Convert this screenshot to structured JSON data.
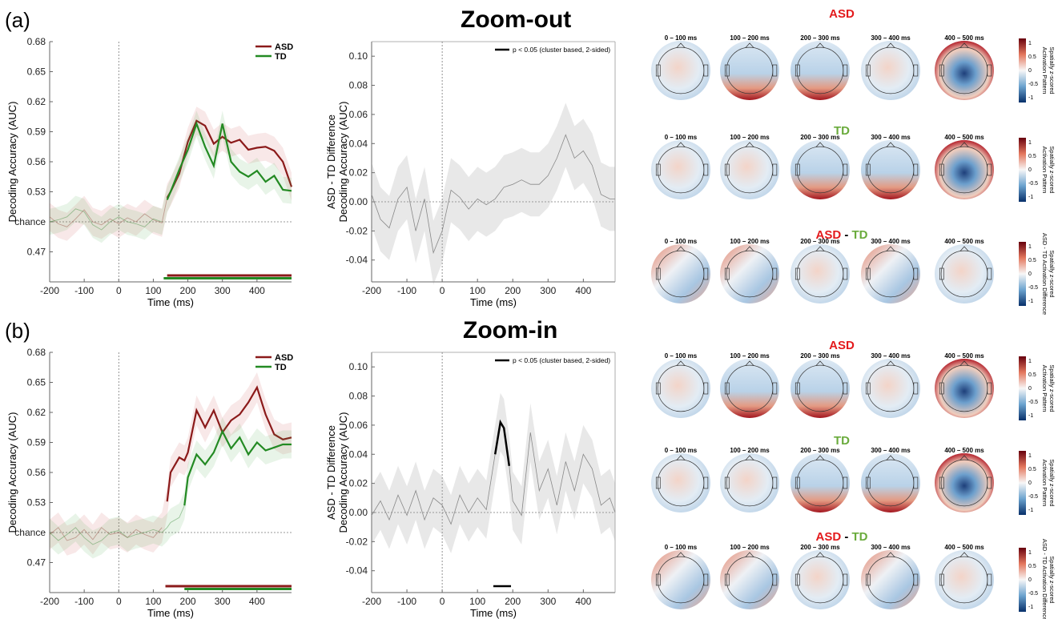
{
  "panels": [
    {
      "label": "(a)",
      "title": "Zoom-out"
    },
    {
      "label": "(b)",
      "title": "Zoom-in"
    }
  ],
  "colors": {
    "asd": "#8b1a1a",
    "td": "#238a23",
    "diff": "#888888",
    "sig": "#000000"
  },
  "topo": {
    "time_windows": [
      "0 – 100 ms",
      "100 – 200 ms",
      "200 – 300 ms",
      "300 – 400 ms",
      "400 – 500 ms"
    ],
    "group_titles": {
      "asd": "ASD",
      "td": "TD",
      "diff_a": "ASD",
      "diff_sep": " - ",
      "diff_b": "TD"
    },
    "colorbar_labels": {
      "group": [
        "Activation Pattern",
        "Spatially z-scored"
      ],
      "diff": [
        "ASD - TD Activation Difference",
        "Spatially z-scored"
      ]
    },
    "colorbar_ticks": [
      "1",
      "0.5",
      "0",
      "-0.5",
      "-1"
    ]
  },
  "chart_data": [
    {
      "type": "line",
      "panel": "a-left",
      "xlabel": "Time (ms)",
      "ylabel": "Decoding Accuracy (AUC)",
      "xlim": [
        -200,
        500
      ],
      "ylim": [
        0.44,
        0.68
      ],
      "xticks": [
        -200,
        -100,
        0,
        100,
        200,
        300,
        400
      ],
      "yticks": [
        0.47,
        0.5,
        0.53,
        0.56,
        0.59,
        0.62,
        0.65,
        0.68
      ],
      "ytick_labels": [
        "0.47",
        "chance",
        "0.53",
        "0.56",
        "0.59",
        "0.62",
        "0.65",
        "0.68"
      ],
      "legend": "top-right",
      "x": [
        -200,
        -175,
        -150,
        -125,
        -100,
        -75,
        -50,
        -25,
        0,
        25,
        50,
        75,
        100,
        125,
        140,
        150,
        175,
        200,
        225,
        250,
        275,
        300,
        325,
        350,
        375,
        400,
        425,
        450,
        475,
        500
      ],
      "series": [
        {
          "name": "ASD",
          "values": [
            0.505,
            0.498,
            0.495,
            0.503,
            0.512,
            0.5,
            0.497,
            0.503,
            0.498,
            0.504,
            0.5,
            0.508,
            0.502,
            0.499,
            0.524,
            0.53,
            0.548,
            0.58,
            0.601,
            0.596,
            0.578,
            0.585,
            0.579,
            0.582,
            0.572,
            0.574,
            0.575,
            0.571,
            0.56,
            0.535
          ],
          "band": 0.014
        },
        {
          "name": "TD",
          "values": [
            0.5,
            0.502,
            0.505,
            0.513,
            0.51,
            0.497,
            0.492,
            0.5,
            0.505,
            0.5,
            0.498,
            0.495,
            0.503,
            0.5,
            0.522,
            0.53,
            0.552,
            0.572,
            0.598,
            0.575,
            0.556,
            0.598,
            0.56,
            0.55,
            0.545,
            0.551,
            0.54,
            0.546,
            0.532,
            0.531
          ],
          "band": 0.013
        }
      ],
      "sig_bars": [
        {
          "series": "ASD",
          "start": 140,
          "end": 500
        },
        {
          "series": "TD",
          "start": 130,
          "end": 500
        }
      ]
    },
    {
      "type": "line",
      "panel": "a-right",
      "xlabel": "Time (ms)",
      "ylabel": [
        "ASD - TD Difference",
        "Decoding Accuracy (AUC)"
      ],
      "xlim": [
        -200,
        490
      ],
      "ylim": [
        -0.055,
        0.11
      ],
      "xticks": [
        -200,
        -100,
        0,
        100,
        200,
        300,
        400
      ],
      "yticks": [
        -0.04,
        -0.02,
        0,
        0.02,
        0.04,
        0.06,
        0.08,
        0.1
      ],
      "ytick_labels": [
        "-0.04",
        "-0.02",
        "0.00",
        "0.02",
        "0.04",
        "0.06",
        "0.08",
        "0.10"
      ],
      "legend": "top-right",
      "legend_entries": [
        "p < 0.05 (cluster based, 2-sided)"
      ],
      "x": [
        -200,
        -175,
        -150,
        -125,
        -100,
        -75,
        -50,
        -25,
        0,
        25,
        50,
        75,
        100,
        125,
        150,
        175,
        200,
        225,
        250,
        275,
        300,
        325,
        350,
        375,
        400,
        425,
        450,
        475,
        490
      ],
      "series": [
        {
          "name": "ASD - TD",
          "values": [
            0.005,
            -0.012,
            -0.018,
            0.002,
            0.01,
            -0.02,
            0.002,
            -0.035,
            -0.02,
            0.008,
            0.003,
            -0.005,
            0.002,
            -0.002,
            0.002,
            0.01,
            0.012,
            0.015,
            0.012,
            0.012,
            0.018,
            0.03,
            0.046,
            0.03,
            0.035,
            0.025,
            0.005,
            0.002,
            0.002
          ],
          "band": 0.022
        }
      ],
      "sig_segments": []
    },
    {
      "type": "line",
      "panel": "b-left",
      "xlabel": "Time (ms)",
      "ylabel": "Decoding Accuracy (AUC)",
      "xlim": [
        -200,
        500
      ],
      "ylim": [
        0.44,
        0.68
      ],
      "xticks": [
        -200,
        -100,
        0,
        100,
        200,
        300,
        400
      ],
      "yticks": [
        0.47,
        0.5,
        0.53,
        0.56,
        0.59,
        0.62,
        0.65,
        0.68
      ],
      "ytick_labels": [
        "0.47",
        "chance",
        "0.53",
        "0.56",
        "0.59",
        "0.62",
        "0.65",
        "0.68"
      ],
      "legend": "top-right",
      "x": [
        -200,
        -175,
        -150,
        -125,
        -100,
        -75,
        -50,
        -25,
        0,
        25,
        50,
        75,
        100,
        125,
        140,
        150,
        175,
        190,
        200,
        225,
        250,
        275,
        300,
        325,
        350,
        375,
        400,
        425,
        450,
        475,
        500
      ],
      "series": [
        {
          "name": "ASD",
          "values": [
            0.498,
            0.505,
            0.492,
            0.495,
            0.503,
            0.493,
            0.505,
            0.498,
            0.5,
            0.495,
            0.503,
            0.498,
            0.495,
            0.505,
            0.531,
            0.56,
            0.575,
            0.572,
            0.58,
            0.622,
            0.605,
            0.622,
            0.6,
            0.612,
            0.618,
            0.63,
            0.645,
            0.618,
            0.598,
            0.593,
            0.595
          ],
          "band": 0.015
        },
        {
          "name": "TD",
          "values": [
            0.5,
            0.492,
            0.498,
            0.505,
            0.495,
            0.488,
            0.492,
            0.5,
            0.502,
            0.495,
            0.498,
            0.5,
            0.503,
            0.5,
            0.505,
            0.51,
            0.515,
            0.527,
            0.555,
            0.578,
            0.568,
            0.58,
            0.601,
            0.584,
            0.595,
            0.578,
            0.59,
            0.582,
            0.585,
            0.588,
            0.588
          ],
          "band": 0.014
        }
      ],
      "sig_bars": [
        {
          "series": "ASD",
          "start": 135,
          "end": 500
        },
        {
          "series": "TD",
          "start": 190,
          "end": 500
        }
      ]
    },
    {
      "type": "line",
      "panel": "b-right",
      "xlabel": "Time (ms)",
      "ylabel": [
        "ASD - TD Difference",
        "Decoding Accuracy (AUC)"
      ],
      "xlim": [
        -200,
        490
      ],
      "ylim": [
        -0.055,
        0.11
      ],
      "xticks": [
        -200,
        -100,
        0,
        100,
        200,
        300,
        400
      ],
      "yticks": [
        -0.04,
        -0.02,
        0,
        0.02,
        0.04,
        0.06,
        0.08,
        0.1
      ],
      "ytick_labels": [
        "-0.04",
        "-0.02",
        "0.00",
        "0.02",
        "0.04",
        "0.06",
        "0.08",
        "0.10"
      ],
      "legend": "top-right",
      "legend_entries": [
        "p < 0.05 (cluster based, 2-sided)"
      ],
      "x": [
        -200,
        -175,
        -150,
        -125,
        -100,
        -75,
        -50,
        -25,
        0,
        25,
        50,
        75,
        100,
        125,
        150,
        165,
        175,
        190,
        200,
        225,
        250,
        275,
        300,
        325,
        350,
        375,
        400,
        425,
        450,
        475,
        490
      ],
      "series": [
        {
          "name": "ASD - TD",
          "values": [
            -0.002,
            0.008,
            -0.005,
            0.012,
            -0.002,
            0.015,
            -0.005,
            0.01,
            0.005,
            -0.008,
            0.012,
            0.0,
            0.01,
            0.002,
            0.04,
            0.062,
            0.058,
            0.032,
            0.008,
            -0.002,
            0.055,
            0.015,
            0.03,
            0.005,
            0.035,
            0.015,
            0.04,
            0.03,
            0.005,
            0.01,
            0.0
          ],
          "band": 0.02
        }
      ],
      "sig_segments": [
        {
          "start": 145,
          "end": 195
        }
      ]
    }
  ]
}
